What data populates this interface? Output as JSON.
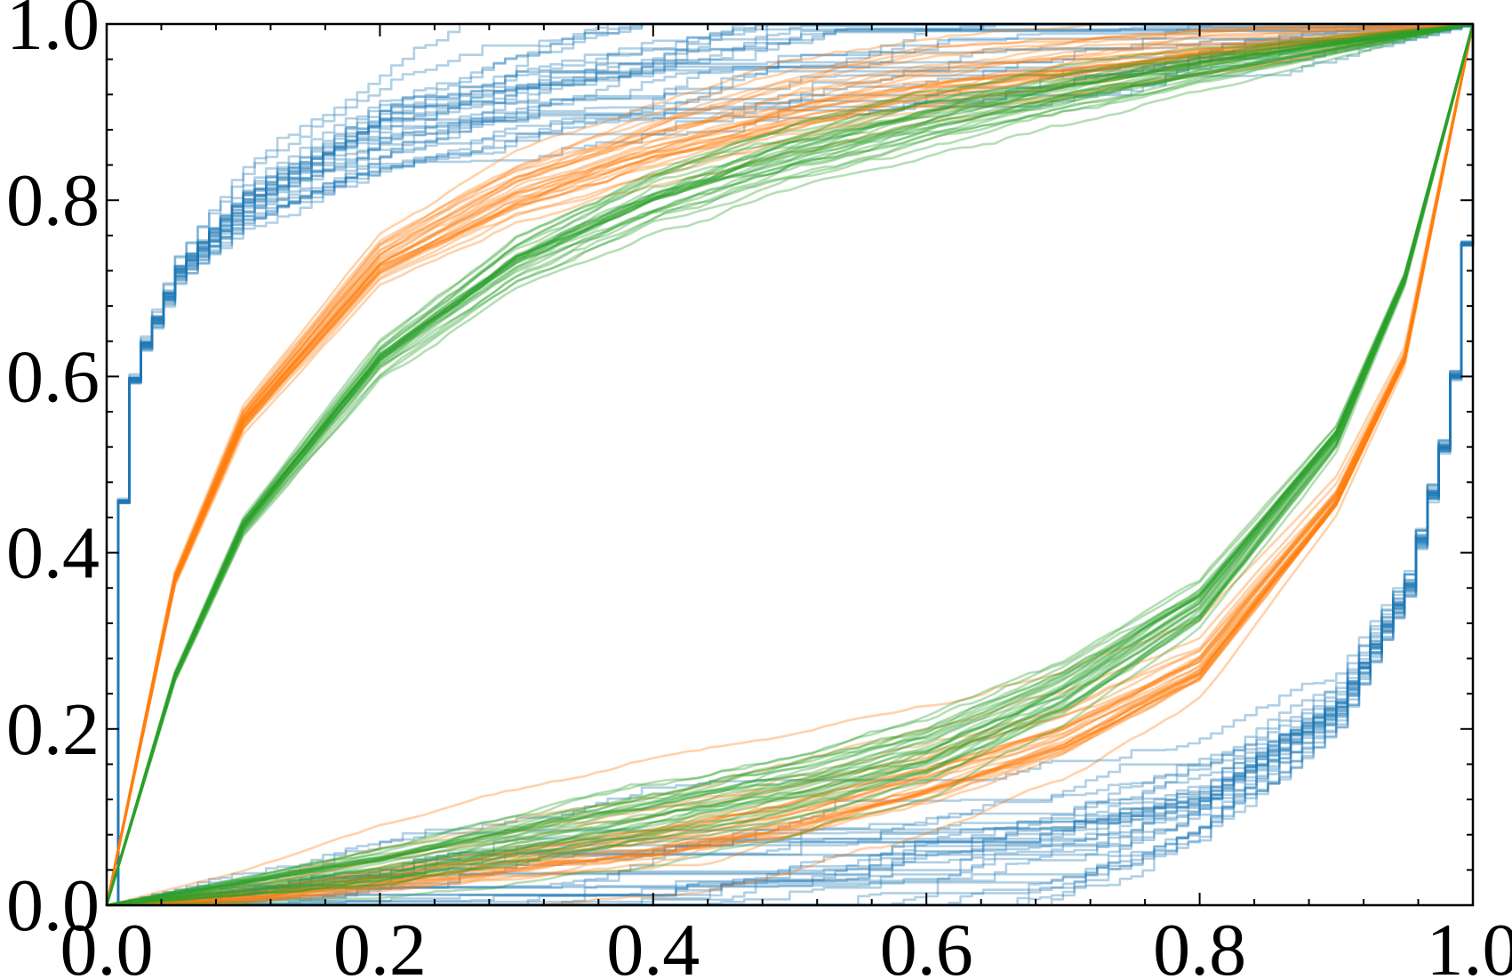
{
  "chart_data": {
    "type": "line",
    "title": "",
    "xlabel": "",
    "ylabel": "",
    "xlim": [
      0.0,
      1.0
    ],
    "ylim": [
      0.0,
      1.0
    ],
    "grid": false,
    "legend": "none",
    "xticks": [
      "0.0",
      "0.2",
      "0.4",
      "0.6",
      "0.8",
      "1.0"
    ],
    "yticks": [
      "0.0",
      "0.2",
      "0.4",
      "0.6",
      "0.8",
      "1.0"
    ],
    "tick_direction": "in",
    "minor_ticks": true,
    "series_colors": {
      "blue": "#1f77b4",
      "orange": "#ff7f0e",
      "green": "#2ca02c"
    },
    "curve_families": [
      {
        "color": "blue",
        "description_of_shape": "upper and lower bundles; jagged step-like",
        "replicates_per_bundle": 30,
        "upper_reference": {
          "x": [
            0.0,
            0.01,
            0.02,
            0.05,
            0.1,
            0.2,
            0.3,
            0.4,
            0.5,
            0.6,
            0.8,
            1.0
          ],
          "y": [
            0.0,
            0.55,
            0.62,
            0.72,
            0.8,
            0.88,
            0.92,
            0.95,
            0.97,
            0.98,
            0.99,
            1.0
          ]
        },
        "lower_reference": {
          "x": [
            0.0,
            0.2,
            0.4,
            0.5,
            0.6,
            0.7,
            0.8,
            0.9,
            0.95,
            0.98,
            0.99,
            1.0
          ],
          "y": [
            0.0,
            0.003,
            0.01,
            0.02,
            0.035,
            0.06,
            0.11,
            0.22,
            0.36,
            0.55,
            0.7,
            1.0
          ]
        }
      },
      {
        "color": "orange",
        "description_of_shape": "upper and lower bundles; smooth",
        "replicates_per_bundle": 30,
        "upper_reference": {
          "x": [
            0.0,
            0.05,
            0.1,
            0.2,
            0.3,
            0.4,
            0.5,
            0.6,
            0.7,
            0.8,
            0.9,
            1.0
          ],
          "y": [
            0.0,
            0.37,
            0.55,
            0.73,
            0.81,
            0.86,
            0.9,
            0.93,
            0.95,
            0.97,
            0.985,
            1.0
          ]
        },
        "lower_reference": {
          "x": [
            0.0,
            0.1,
            0.2,
            0.3,
            0.4,
            0.5,
            0.6,
            0.7,
            0.8,
            0.9,
            0.95,
            1.0
          ],
          "y": [
            0.0,
            0.01,
            0.03,
            0.05,
            0.07,
            0.1,
            0.14,
            0.19,
            0.27,
            0.46,
            0.62,
            1.0
          ]
        }
      },
      {
        "color": "green",
        "description_of_shape": "upper and lower bundles; smooth, closest to diagonal",
        "replicates_per_bundle": 30,
        "upper_reference": {
          "x": [
            0.0,
            0.05,
            0.1,
            0.2,
            0.3,
            0.4,
            0.5,
            0.6,
            0.7,
            0.8,
            0.9,
            1.0
          ],
          "y": [
            0.0,
            0.26,
            0.43,
            0.62,
            0.73,
            0.8,
            0.85,
            0.89,
            0.92,
            0.95,
            0.975,
            1.0
          ]
        },
        "lower_reference": {
          "x": [
            0.0,
            0.1,
            0.2,
            0.3,
            0.4,
            0.5,
            0.6,
            0.7,
            0.8,
            0.9,
            0.95,
            1.0
          ],
          "y": [
            0.0,
            0.02,
            0.04,
            0.07,
            0.1,
            0.13,
            0.17,
            0.24,
            0.34,
            0.53,
            0.71,
            1.0
          ]
        }
      }
    ]
  }
}
